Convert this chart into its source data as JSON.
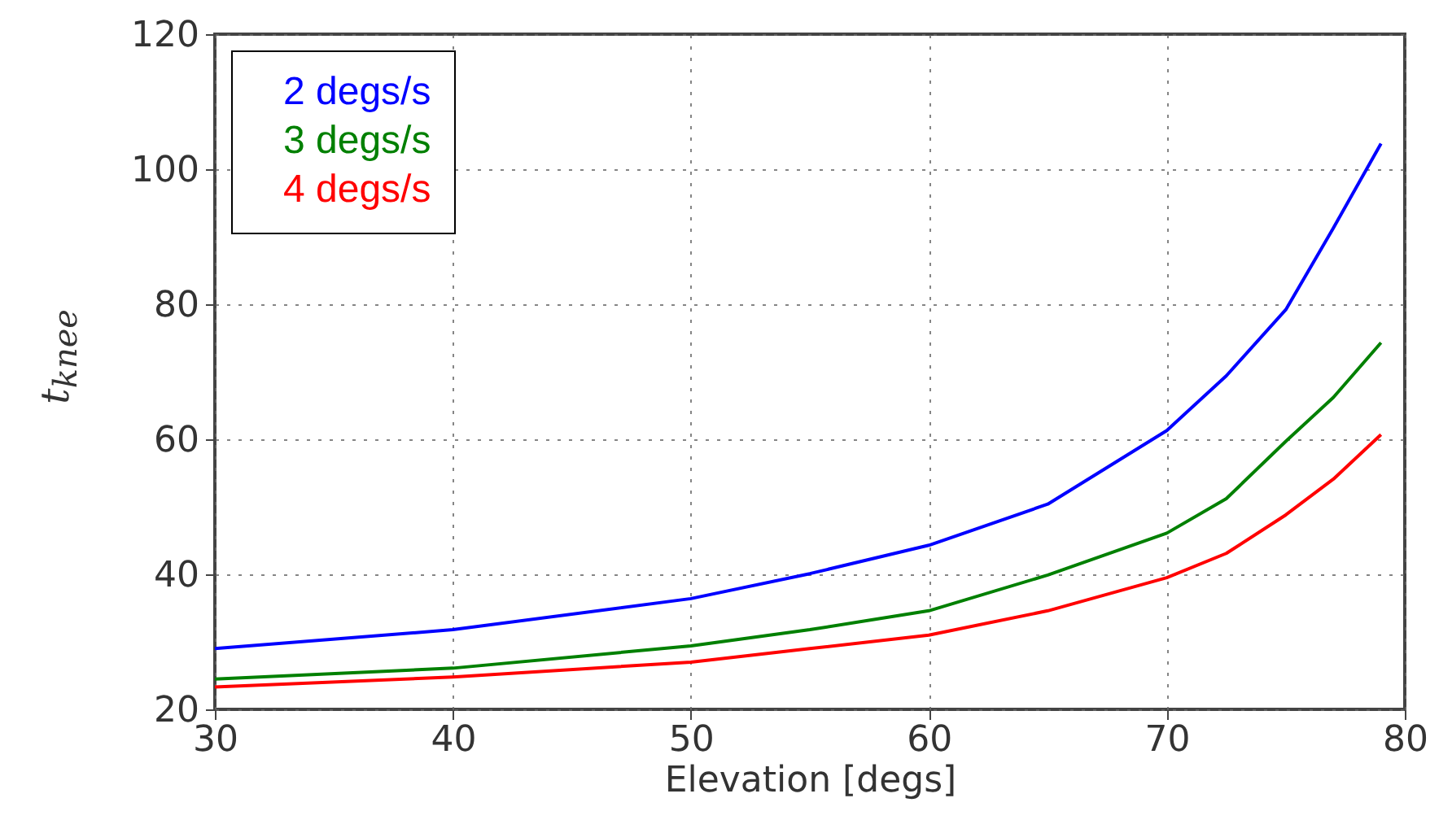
{
  "chart_data": {
    "type": "line",
    "xlabel": "Elevation [degs]",
    "ylabel": "t$_{knee}$",
    "x": [
      30,
      40,
      50,
      55,
      60,
      65,
      70,
      72.5,
      75,
      77,
      79
    ],
    "series": [
      {
        "name": "2 degs/s",
        "color": "#0000ff",
        "values": [
          29,
          31.8,
          36.4,
          40.1,
          44.3,
          50.4,
          61.3,
          69.4,
          79.2,
          91.3,
          103.8
        ]
      },
      {
        "name": "3 degs/s",
        "color": "#008000",
        "values": [
          24.5,
          26.1,
          29.4,
          31.8,
          34.6,
          39.9,
          46.1,
          51.2,
          59.7,
          66.2,
          74.3
        ]
      },
      {
        "name": "4 degs/s",
        "color": "#ff0000",
        "values": [
          23.3,
          24.8,
          27,
          29,
          31,
          34.6,
          39.5,
          43.1,
          48.8,
          54.1,
          60.7
        ]
      }
    ],
    "xlim": [
      30,
      80
    ],
    "xticks": [
      30,
      40,
      50,
      60,
      70,
      80
    ],
    "ylim": [
      20,
      120
    ],
    "yticks": [
      20,
      40,
      60,
      80,
      100,
      120
    ],
    "grid": true,
    "legend": "top left",
    "marker": "none",
    "line_style": "solid"
  }
}
